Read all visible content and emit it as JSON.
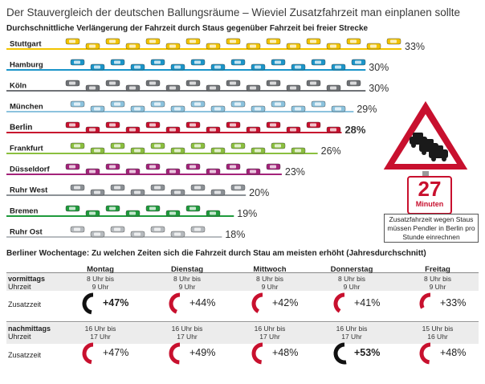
{
  "title": "Der Stauvergleich der deutschen Ballungsräume – Wieviel Zusatzfahrzeit man einplanen sollte",
  "subtitle": "Durchschnittliche Verlängerung der Fahrzeit durch Staus gegenüber Fahrzeit bei freier Strecke",
  "sign": {
    "minutes_value": "27",
    "minutes_label": "Minuten",
    "note": "Zusatzfahrzeit wegen Staus müssen Pendler in Berlin pro Stunde einrechnen",
    "colors": {
      "border": "#c8102e",
      "cars": "#1a1a1a"
    }
  },
  "chart_data": [
    {
      "type": "bar",
      "title": "Durchschnittliche Verlängerung der Fahrzeit durch Staus gegenüber Fahrzeit bei freier Strecke",
      "categories": [
        "Stuttgart",
        "Hamburg",
        "Köln",
        "München",
        "Berlin",
        "Frankfurt",
        "Düsseldorf",
        "Ruhr West",
        "Bremen",
        "Ruhr Ost"
      ],
      "values": [
        33,
        30,
        30,
        29,
        28,
        26,
        23,
        20,
        19,
        18
      ],
      "labels": [
        "33%",
        "30%",
        "30%",
        "29%",
        "28%",
        "26%",
        "23%",
        "20%",
        "19%",
        "18%"
      ],
      "unit": "%",
      "highlight": "Berlin",
      "colors": [
        "#f2c400",
        "#1b95c9",
        "#6f7276",
        "#8cc3de",
        "#c8102e",
        "#8bbf3f",
        "#a3237a",
        "#8c9196",
        "#1f9a3c",
        "#b7bbbf"
      ],
      "xlim": [
        0,
        33
      ]
    },
    {
      "type": "table",
      "title": "Berliner Wochentage: Zu welchen Zeiten sich die Fahrzeit durch Stau am meisten erhöht (Jahresdurchschnitt)",
      "days": [
        "Montag",
        "Dienstag",
        "Mittwoch",
        "Donnerstag",
        "Freitag"
      ],
      "morning": {
        "label": "vormittags",
        "time_label": "Uhrzeit",
        "value_label": "Zusatzzeit",
        "times": [
          [
            "8 Uhr bis",
            "9 Uhr"
          ],
          [
            "8 Uhr bis",
            "9 Uhr"
          ],
          [
            "8 Uhr bis",
            "9 Uhr"
          ],
          [
            "8 Uhr bis",
            "9 Uhr"
          ],
          [
            "8 Uhr bis",
            "9 Uhr"
          ]
        ],
        "values": [
          47,
          44,
          42,
          41,
          33
        ],
        "labels": [
          "+47%",
          "+44%",
          "+42%",
          "+41%",
          "+33%"
        ],
        "max_index": 0
      },
      "afternoon": {
        "label": "nachmittags",
        "time_label": "Uhrzeit",
        "value_label": "Zusatzzeit",
        "times": [
          [
            "16 Uhr bis",
            "17 Uhr"
          ],
          [
            "16 Uhr bis",
            "17 Uhr"
          ],
          [
            "16 Uhr bis",
            "17 Uhr"
          ],
          [
            "16 Uhr bis",
            "17 Uhr"
          ],
          [
            "15 Uhr bis",
            "16 Uhr"
          ]
        ],
        "values": [
          47,
          49,
          48,
          53,
          48
        ],
        "labels": [
          "+47%",
          "+49%",
          "+48%",
          "+53%",
          "+48%"
        ],
        "max_index": 3
      },
      "colors": {
        "normal": "#c8102e",
        "max": "#111111"
      }
    }
  ]
}
